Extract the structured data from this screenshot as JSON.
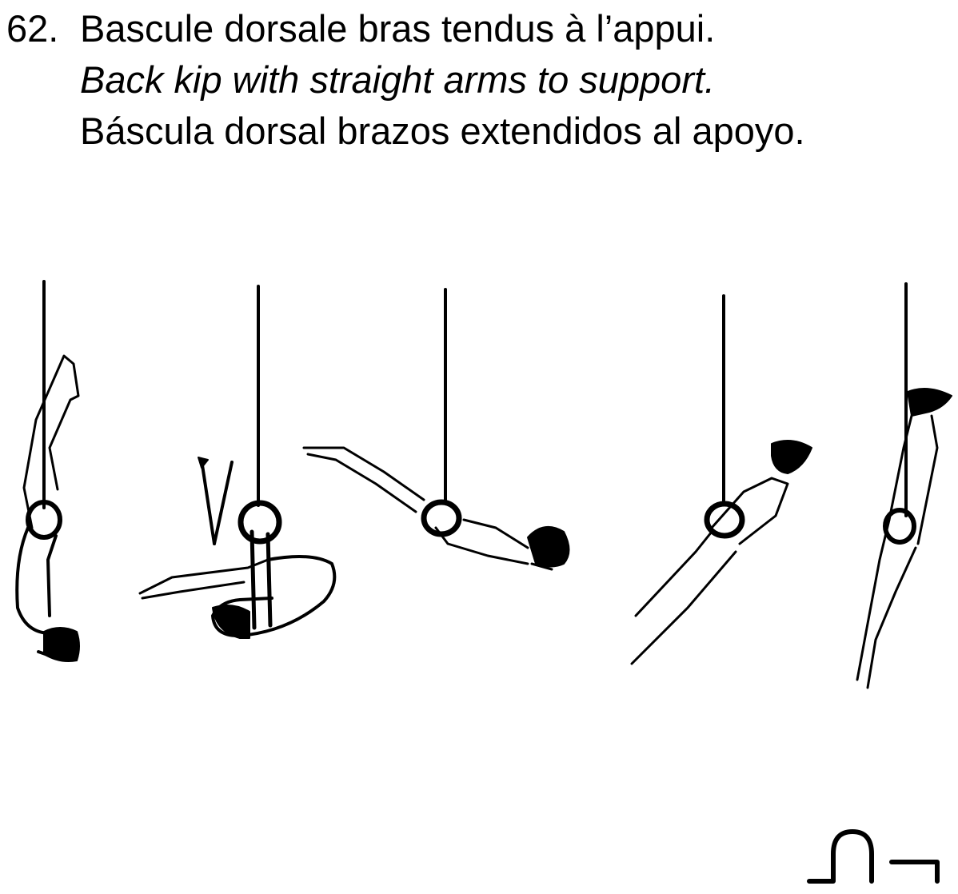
{
  "element": {
    "number": "62.",
    "title_fr": "Bascule dorsale bras tendus à l’appui.",
    "title_en": "Back kip with straight arms to support.",
    "title_es": "Báscula dorsal brazos extendidos al apoyo."
  },
  "diagram": {
    "apparatus": "rings",
    "figure_count": 5,
    "ink_color": "#000000",
    "background_color": "#ffffff"
  }
}
